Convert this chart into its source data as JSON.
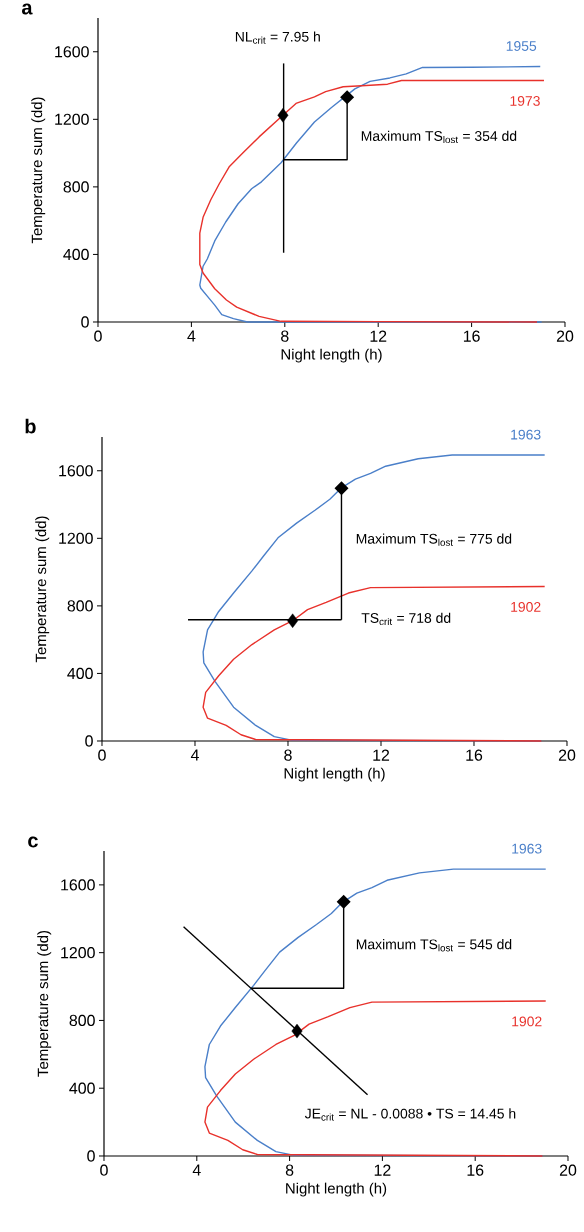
{
  "chart_data": [
    {
      "type": "line",
      "title": "a",
      "xlabel": "Night length (h)",
      "ylabel": "Temperature sum (dd)",
      "xlim": [
        0,
        20
      ],
      "ylim": [
        0,
        1800
      ],
      "xticks": [
        0,
        4,
        8,
        12,
        16,
        20
      ],
      "yticks": [
        0,
        400,
        800,
        1200,
        1600
      ],
      "annotations": [
        "NL$_{crit}$ = 7.95 h",
        "Maximum TS$_{lost}$ = 354 dd"
      ],
      "series": [
        {
          "name": "1955",
          "color": "#4a7fc9",
          "x": [
            18.94,
            16,
            13.9,
            13.2,
            12.5,
            11.65,
            11,
            10,
            9.27,
            8.5,
            7.84,
            7,
            6.58,
            6,
            5.47,
            5,
            4.68,
            4.5,
            4.36,
            4.4,
            4.68,
            5,
            5.3,
            5.8,
            6.4,
            8,
            12,
            19
          ],
          "values": [
            1513,
            1508,
            1507,
            1469,
            1445,
            1425,
            1380,
            1270,
            1184,
            1060,
            943,
            830,
            789,
            700,
            592,
            480,
            373,
            330,
            219,
            200,
            153,
            100,
            44,
            20,
            0,
            0,
            0,
            0
          ]
        },
        {
          "name": "1973",
          "color": "#e8312b",
          "x": [
            19.1,
            13,
            12.4,
            11.3,
            10.5,
            9.75,
            9.27,
            8.48,
            7.92,
            6.9,
            6.2,
            5.63,
            5.2,
            4.83,
            4.5,
            4.36,
            4.36,
            4.5,
            5,
            5.5,
            5.94,
            6.9,
            7.84,
            12,
            18.8
          ],
          "values": [
            1430,
            1430,
            1408,
            1399,
            1393,
            1364,
            1333,
            1294,
            1224,
            1096,
            1000,
            921,
            820,
            724,
            620,
            526,
            340,
            290,
            197,
            130,
            88,
            33,
            4,
            2,
            0
          ]
        },
        {
          "color": "#000000",
          "x": [
            7.95,
            7.95
          ],
          "values": [
            410,
            1531
          ]
        },
        {
          "type": "scatter",
          "marker": "diamond",
          "color": "#000000",
          "x": [
            7.92
          ],
          "values": [
            1224
          ]
        }
      ]
    },
    {
      "type": "line",
      "title": "b",
      "xlabel": "Night length (h)",
      "ylabel": "Temperature sum (dd)",
      "xlim": [
        0,
        20
      ],
      "ylim": [
        0,
        1800
      ],
      "xticks": [
        0,
        4,
        8,
        12,
        16,
        20
      ],
      "yticks": [
        0,
        400,
        800,
        1200,
        1600
      ],
      "annotations": [
        "Maximum TS$_{lost}$ = 775 dd",
        "TS$_{crit}$ = 718 dd"
      ],
      "series": [
        {
          "name": "1963",
          "color": "#4a7fc9",
          "x": [
            19.04,
            15.06,
            13.6,
            12.2,
            11.55,
            10.9,
            10.28,
            9.8,
            9.16,
            8.37,
            7.57,
            6.94,
            6.45,
            5.66,
            5.02,
            4.54,
            4.35,
            4.38,
            4.86,
            5.66,
            6.61,
            7.41,
            8.2,
            18.9
          ],
          "values": [
            1693,
            1693,
            1671,
            1627,
            1584,
            1551,
            1497,
            1431,
            1366,
            1290,
            1203,
            1094,
            1007,
            876,
            767,
            658,
            527,
            462,
            353,
            200,
            92,
            26,
            4,
            0
          ]
        },
        {
          "name": "1902",
          "color": "#e8312b",
          "x": [
            19.04,
            11.55,
            10.6,
            9.64,
            8.84,
            8.2,
            7.41,
            6.45,
            5.66,
            5.02,
            4.46,
            4.35,
            4.54,
            5.34,
            5.98,
            6.61,
            18.9
          ],
          "values": [
            915,
            908,
            876,
            821,
            778,
            712,
            658,
            571,
            484,
            386,
            288,
            200,
            135,
            92,
            37,
            9,
            0
          ]
        },
        {
          "color": "#000000",
          "x": [
            3.7,
            10.3
          ],
          "values": [
            718,
            718
          ]
        },
        {
          "type": "scatter",
          "marker": "diamond",
          "color": "#000000",
          "x": [
            8.2
          ],
          "values": [
            712
          ]
        }
      ]
    },
    {
      "type": "line",
      "title": "c",
      "xlabel": "Night length (h)",
      "ylabel": "Temperature sum (dd)",
      "xlim": [
        0,
        20
      ],
      "ylim": [
        0,
        1800
      ],
      "xticks": [
        0,
        4,
        8,
        12,
        16,
        20
      ],
      "yticks": [
        0,
        400,
        800,
        1200,
        1600
      ],
      "annotations": [
        "Maximum TS$_{lost}$ = 545 dd",
        "JE$_{crit}$ = NL - 0.0088 • TS = 14.45 h"
      ],
      "series": [
        {
          "name": "1963",
          "color": "#4a7fc9",
          "x": [
            19.04,
            15.06,
            13.6,
            12.2,
            11.55,
            10.9,
            10.28,
            9.8,
            9.16,
            8.37,
            7.57,
            6.94,
            6.45,
            5.66,
            5.02,
            4.54,
            4.35,
            4.38,
            4.86,
            5.66,
            6.61,
            7.41,
            8.2,
            18.9
          ],
          "values": [
            1693,
            1693,
            1671,
            1627,
            1584,
            1551,
            1497,
            1431,
            1366,
            1290,
            1203,
            1094,
            1007,
            876,
            767,
            658,
            527,
            462,
            353,
            200,
            92,
            26,
            4,
            0
          ]
        },
        {
          "name": "1902",
          "color": "#e8312b",
          "x": [
            19.04,
            11.55,
            10.6,
            9.64,
            8.84,
            8.2,
            7.41,
            6.45,
            5.66,
            5.02,
            4.46,
            4.35,
            4.54,
            5.34,
            5.98,
            6.61,
            18.9
          ],
          "values": [
            915,
            908,
            876,
            821,
            778,
            712,
            658,
            571,
            484,
            386,
            288,
            200,
            135,
            92,
            37,
            9,
            0
          ]
        },
        {
          "color": "#000000",
          "x": [
            3.43,
            11.36
          ],
          "values": [
            1353,
            361
          ]
        },
        {
          "type": "scatter",
          "marker": "diamond",
          "color": "#000000",
          "x": [
            8.32
          ],
          "values": [
            737
          ]
        }
      ]
    }
  ]
}
